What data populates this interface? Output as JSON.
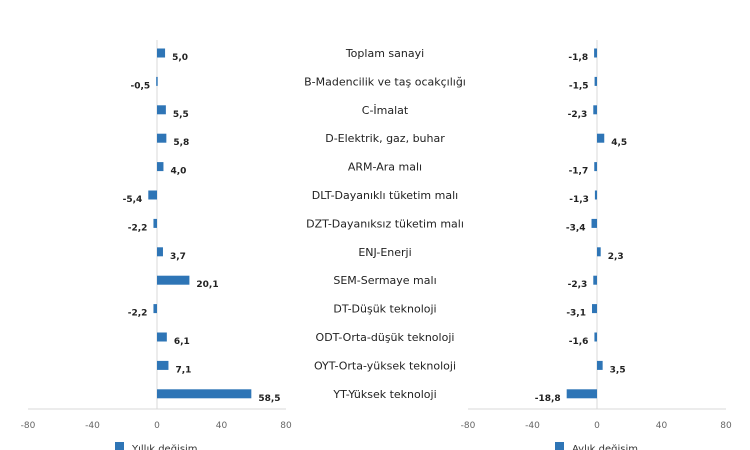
{
  "chart_data": [
    {
      "type": "bar",
      "orientation": "horizontal",
      "categories": [
        "Toplam sanayi",
        "B-Madencilik ve taş ocakçılığı",
        "C-İmalat",
        "D-Elektrik, gaz, buhar",
        "ARM-Ara malı",
        "DLT-Dayanıklı tüketim malı",
        "DZT-Dayanıksız tüketim malı",
        "ENJ-Enerji",
        "SEM-Sermaye malı",
        "DT-Düşük teknoloji",
        "ODT-Orta-düşük teknoloji",
        "OYT-Orta-yüksek teknoloji",
        "YT-Yüksek teknoloji"
      ],
      "series": [
        {
          "name": "Yıllık değişim",
          "values": [
            5.0,
            -0.5,
            5.5,
            5.8,
            4.0,
            -5.4,
            -2.2,
            3.7,
            20.1,
            -2.2,
            6.1,
            7.1,
            58.5
          ]
        }
      ],
      "data_labels": [
        "5,0",
        "-0,5",
        "5,5",
        "5,8",
        "4,0",
        "-5,4",
        "-2,2",
        "3,7",
        "20,1",
        "-2,2",
        "6,1",
        "7,1",
        "58,5"
      ],
      "xlim": [
        -80,
        80
      ],
      "x_ticks": [
        "-80",
        "-40",
        "0",
        "40",
        "80"
      ],
      "legend": "bottom",
      "color": "#2e75b6"
    },
    {
      "type": "bar",
      "orientation": "horizontal",
      "categories": [
        "Toplam sanayi",
        "B-Madencilik ve taş ocakçılığı",
        "C-İmalat",
        "D-Elektrik, gaz, buhar",
        "ARM-Ara malı",
        "DLT-Dayanıklı tüketim malı",
        "DZT-Dayanıksız tüketim malı",
        "ENJ-Enerji",
        "SEM-Sermaye malı",
        "DT-Düşük teknoloji",
        "ODT-Orta-düşük teknoloji",
        "OYT-Orta-yüksek teknoloji",
        "YT-Yüksek teknoloji"
      ],
      "series": [
        {
          "name": "Aylık değişim",
          "values": [
            -1.8,
            -1.5,
            -2.3,
            4.5,
            -1.7,
            -1.3,
            -3.4,
            2.3,
            -2.3,
            -3.1,
            -1.6,
            3.5,
            -18.8
          ]
        }
      ],
      "data_labels": [
        "-1,8",
        "-1,5",
        "-2,3",
        "4,5",
        "-1,7",
        "-1,3",
        "-3,4",
        "2,3",
        "-2,3",
        "-3,1",
        "-1,6",
        "3,5",
        "-18,8"
      ],
      "xlim": [
        -80,
        80
      ],
      "x_ticks": [
        "-80",
        "-40",
        "0",
        "40",
        "80"
      ],
      "legend": "bottom",
      "color": "#2e75b6"
    }
  ]
}
